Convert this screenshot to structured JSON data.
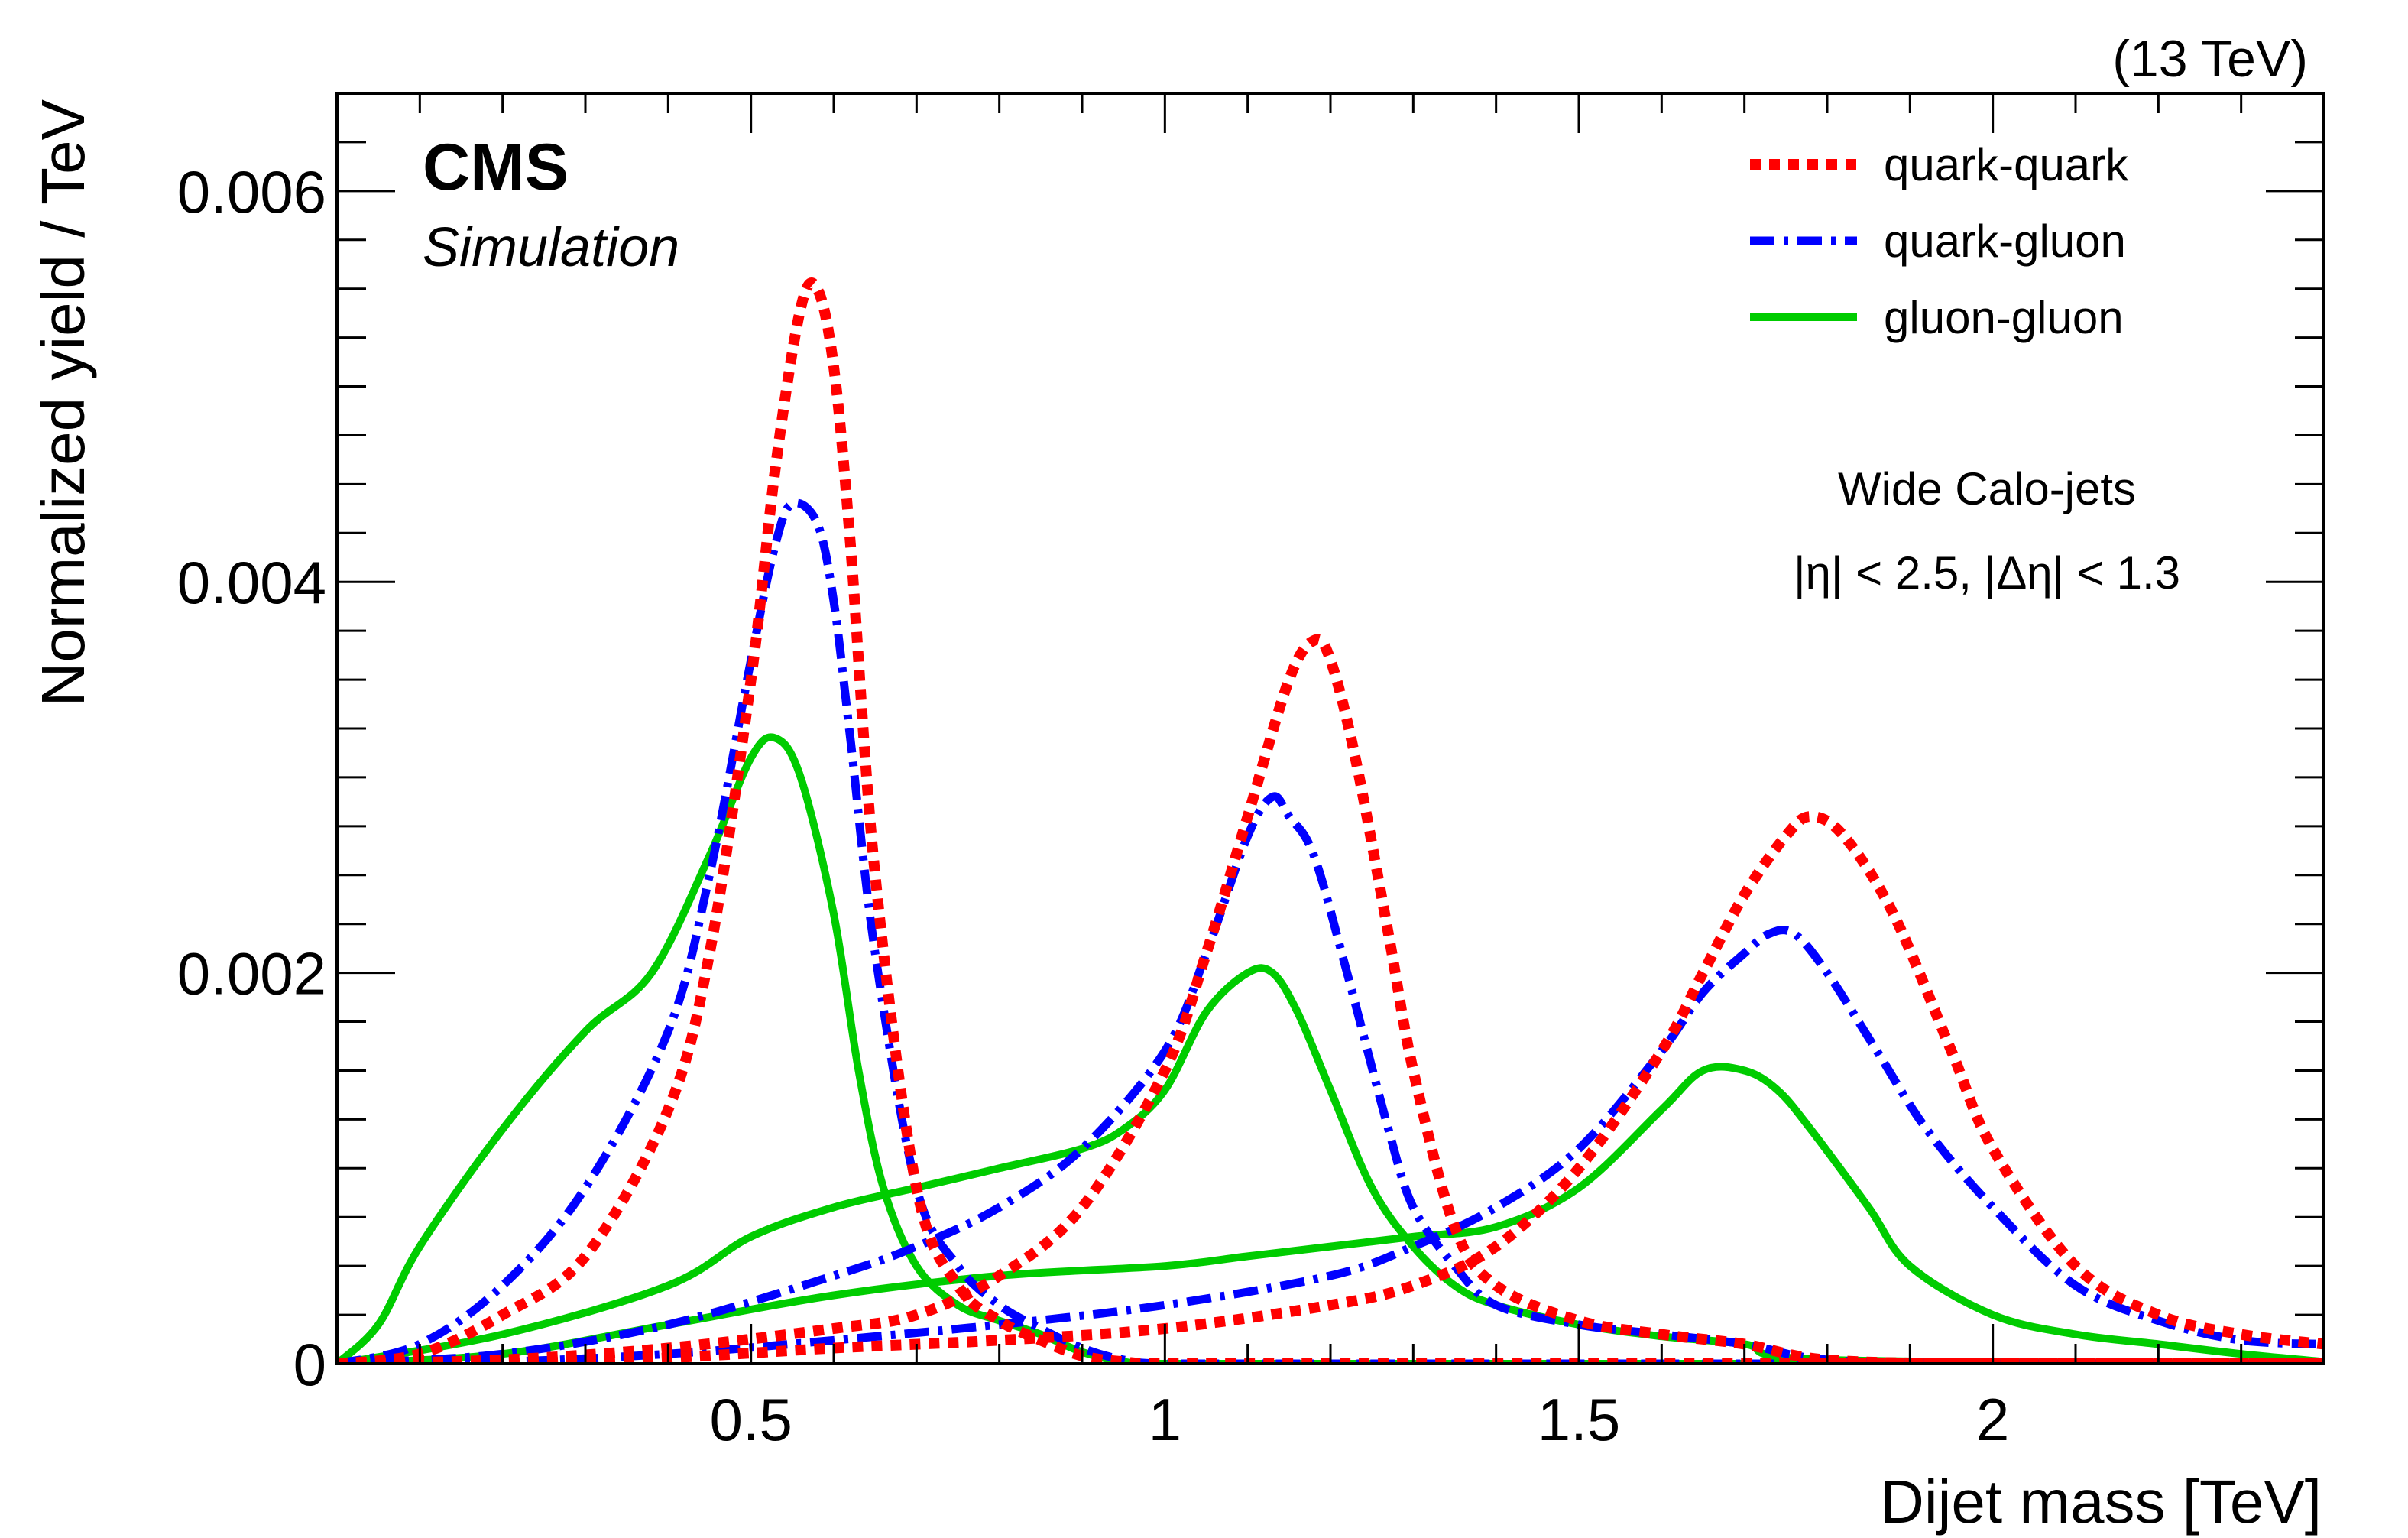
{
  "chart_data": {
    "type": "line",
    "title": "",
    "xlabel": "Dijet mass [TeV]",
    "ylabel": "Normalized yield / TeV",
    "xlim": [
      0,
      2.4
    ],
    "ylim": [
      0,
      0.0065
    ],
    "x_ticks": [
      0.5,
      1,
      1.5,
      2
    ],
    "x_tick_labels": [
      "0.5",
      "1",
      "1.5",
      "2"
    ],
    "y_ticks": [
      0,
      0.002,
      0.004,
      0.006
    ],
    "y_tick_labels": [
      "0",
      "0.002",
      "0.004",
      "0.006"
    ],
    "grid": false,
    "legend_position": "top-right",
    "header_right": "(13 TeV)",
    "cms_label": "CMS",
    "cms_sublabel": "Simulation",
    "annotations": [
      "Wide Calo-jets",
      "|η| < 2.5, |Δη| < 1.3"
    ],
    "series": [
      {
        "name": "quark-quark",
        "color": "#ff0000",
        "style": "dotted",
        "group": "0.6 TeV",
        "x": [
          0,
          0.1,
          0.2,
          0.3,
          0.4,
          0.45,
          0.5,
          0.53,
          0.56,
          0.58,
          0.6,
          0.62,
          0.65,
          0.7,
          0.75,
          0.8,
          0.85,
          0.9,
          0.95,
          1.0,
          1.2,
          1.6,
          2.0,
          2.4
        ],
        "y": [
          0,
          5e-05,
          0.00025,
          0.00055,
          0.0013,
          0.0021,
          0.0035,
          0.0046,
          0.0054,
          0.0055,
          0.0051,
          0.0042,
          0.0025,
          0.0009,
          0.0004,
          0.00022,
          0.00012,
          4e-05,
          1e-05,
          0,
          0,
          0,
          0,
          0
        ]
      },
      {
        "name": "quark-gluon",
        "color": "#0000ff",
        "style": "dash-dot",
        "group": "0.6 TeV",
        "x": [
          0,
          0.1,
          0.2,
          0.3,
          0.4,
          0.45,
          0.5,
          0.53,
          0.55,
          0.58,
          0.6,
          0.62,
          0.65,
          0.7,
          0.75,
          0.8,
          0.85,
          0.9,
          0.95,
          1.0,
          1.2,
          1.6,
          2.0,
          2.4
        ],
        "y": [
          0,
          0.0001,
          0.0004,
          0.0009,
          0.0017,
          0.0025,
          0.0036,
          0.0042,
          0.0044,
          0.0043,
          0.0039,
          0.0032,
          0.0021,
          0.0009,
          0.0005,
          0.0003,
          0.00018,
          8e-05,
          2e-05,
          0,
          0,
          0,
          0,
          0
        ]
      },
      {
        "name": "gluon-gluon",
        "color": "#00cc00",
        "style": "solid",
        "group": "0.6 TeV",
        "x": [
          0,
          0.05,
          0.1,
          0.2,
          0.3,
          0.38,
          0.45,
          0.5,
          0.53,
          0.56,
          0.6,
          0.63,
          0.66,
          0.7,
          0.75,
          0.8,
          0.85,
          0.9,
          0.95,
          1.0,
          1.2,
          1.6,
          2.0,
          2.4
        ],
        "y": [
          0,
          0.0002,
          0.0006,
          0.0012,
          0.0017,
          0.002,
          0.0026,
          0.0031,
          0.0032,
          0.003,
          0.0023,
          0.0015,
          0.0009,
          0.0005,
          0.0003,
          0.00022,
          0.00015,
          6e-05,
          1e-05,
          0,
          0,
          0,
          0,
          0
        ]
      },
      {
        "name": "quark-quark",
        "color": "#ff0000",
        "style": "dotted",
        "group": "1.2 TeV",
        "x": [
          0,
          0.2,
          0.4,
          0.6,
          0.7,
          0.8,
          0.9,
          1.0,
          1.05,
          1.1,
          1.15,
          1.18,
          1.2,
          1.23,
          1.27,
          1.3,
          1.35,
          1.4,
          1.5,
          1.6,
          1.7,
          1.8,
          2.0,
          2.4
        ],
        "y": [
          0,
          2e-05,
          8e-05,
          0.00018,
          0.00025,
          0.00045,
          0.0008,
          0.0015,
          0.0021,
          0.0028,
          0.0035,
          0.0037,
          0.0036,
          0.0031,
          0.0022,
          0.0015,
          0.0007,
          0.0004,
          0.00022,
          0.00015,
          0.0001,
          2e-05,
          0,
          0
        ]
      },
      {
        "name": "quark-gluon",
        "color": "#0000ff",
        "style": "dash-dot",
        "group": "1.2 TeV",
        "x": [
          0,
          0.2,
          0.4,
          0.6,
          0.7,
          0.8,
          0.9,
          1.0,
          1.05,
          1.1,
          1.13,
          1.15,
          1.18,
          1.22,
          1.27,
          1.3,
          1.35,
          1.4,
          1.5,
          1.6,
          1.7,
          1.8,
          2.0,
          2.4
        ],
        "y": [
          0,
          5e-05,
          0.0002,
          0.00045,
          0.0006,
          0.0008,
          0.0011,
          0.0016,
          0.0021,
          0.0027,
          0.0029,
          0.0028,
          0.0026,
          0.002,
          0.0012,
          0.0008,
          0.0005,
          0.0003,
          0.0002,
          0.00015,
          0.0001,
          2e-05,
          0,
          0
        ]
      },
      {
        "name": "gluon-gluon",
        "color": "#00cc00",
        "style": "solid",
        "group": "1.2 TeV",
        "x": [
          0,
          0.2,
          0.4,
          0.5,
          0.6,
          0.7,
          0.8,
          0.9,
          0.95,
          1.0,
          1.05,
          1.1,
          1.13,
          1.16,
          1.2,
          1.25,
          1.3,
          1.35,
          1.4,
          1.5,
          1.6,
          1.7,
          1.8,
          2.4
        ],
        "y": [
          0,
          0.00015,
          0.0004,
          0.00065,
          0.0008,
          0.0009,
          0.001,
          0.0011,
          0.0012,
          0.0014,
          0.0018,
          0.002,
          0.002,
          0.0018,
          0.0014,
          0.0009,
          0.0006,
          0.0004,
          0.0003,
          0.0002,
          0.00014,
          0.0001,
          2e-05,
          0
        ]
      },
      {
        "name": "quark-quark",
        "color": "#ff0000",
        "style": "dotted",
        "group": "1.8 TeV",
        "x": [
          0,
          0.2,
          0.4,
          0.6,
          0.8,
          1.0,
          1.2,
          1.3,
          1.4,
          1.5,
          1.6,
          1.65,
          1.7,
          1.75,
          1.78,
          1.82,
          1.88,
          1.95,
          2.0,
          2.1,
          2.2,
          2.3,
          2.4
        ],
        "y": [
          0,
          0,
          3e-05,
          8e-05,
          0.00012,
          0.00018,
          0.0003,
          0.0004,
          0.0006,
          0.001,
          0.0016,
          0.002,
          0.0024,
          0.0027,
          0.0028,
          0.0027,
          0.0023,
          0.0016,
          0.0011,
          0.0005,
          0.00025,
          0.00015,
          0.0001
        ]
      },
      {
        "name": "quark-gluon",
        "color": "#0000ff",
        "style": "dash-dot",
        "group": "1.8 TeV",
        "x": [
          0,
          0.2,
          0.4,
          0.6,
          0.8,
          1.0,
          1.2,
          1.3,
          1.4,
          1.5,
          1.6,
          1.65,
          1.7,
          1.73,
          1.76,
          1.8,
          1.86,
          1.92,
          2.0,
          2.1,
          2.2,
          2.3,
          2.4
        ],
        "y": [
          0,
          1e-05,
          5e-05,
          0.00012,
          0.0002,
          0.0003,
          0.00045,
          0.0006,
          0.0008,
          0.0011,
          0.0016,
          0.0019,
          0.0021,
          0.0022,
          0.0022,
          0.002,
          0.0016,
          0.0012,
          0.0008,
          0.0004,
          0.00022,
          0.00012,
          0.0001
        ]
      },
      {
        "name": "gluon-gluon",
        "color": "#00cc00",
        "style": "solid",
        "group": "1.8 TeV",
        "x": [
          0,
          0.2,
          0.4,
          0.6,
          0.8,
          1.0,
          1.1,
          1.2,
          1.3,
          1.4,
          1.5,
          1.6,
          1.65,
          1.7,
          1.74,
          1.78,
          1.85,
          1.9,
          2.0,
          2.1,
          2.2,
          2.3,
          2.4
        ],
        "y": [
          0,
          5e-05,
          0.0002,
          0.00035,
          0.00045,
          0.0005,
          0.00055,
          0.0006,
          0.00065,
          0.0007,
          0.0009,
          0.0013,
          0.0015,
          0.0015,
          0.0014,
          0.0012,
          0.0008,
          0.0005,
          0.00025,
          0.00015,
          0.0001,
          5e-05,
          1e-05
        ]
      }
    ]
  }
}
